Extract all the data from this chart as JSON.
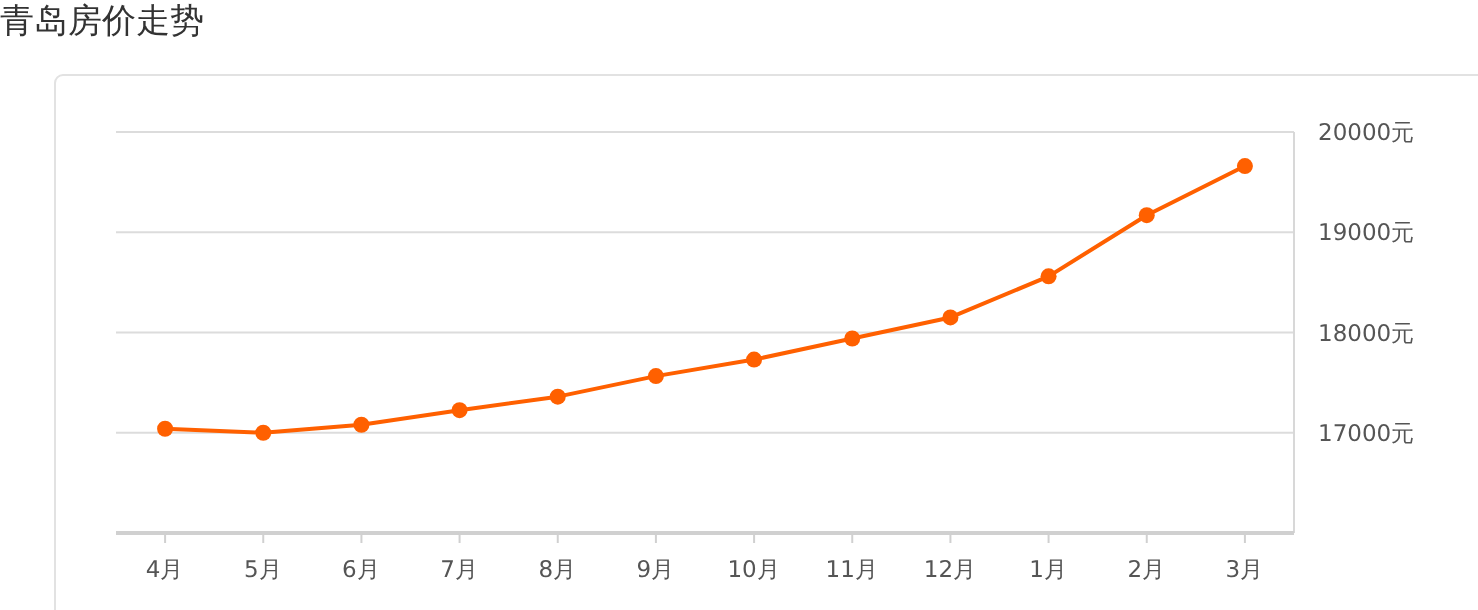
{
  "chart_data": {
    "type": "line",
    "title": "青岛房价走势",
    "categories": [
      "4月",
      "5月",
      "6月",
      "7月",
      "8月",
      "9月",
      "10月",
      "11月",
      "12月",
      "1月",
      "2月",
      "3月"
    ],
    "series": [
      {
        "color": "#ff6000",
        "values": [
          17040,
          17000,
          17080,
          17225,
          17360,
          17565,
          17730,
          17940,
          18150,
          18560,
          19170,
          19660
        ]
      }
    ],
    "ylim": [
      16000,
      20000
    ],
    "yticks": [
      {
        "value": 17000,
        "label": "17000元"
      },
      {
        "value": 18000,
        "label": "18000元"
      },
      {
        "value": 19000,
        "label": "19000元"
      },
      {
        "value": 20000,
        "label": "20000元"
      }
    ],
    "grid": "y",
    "marker": "circle",
    "line_style": "solid"
  }
}
